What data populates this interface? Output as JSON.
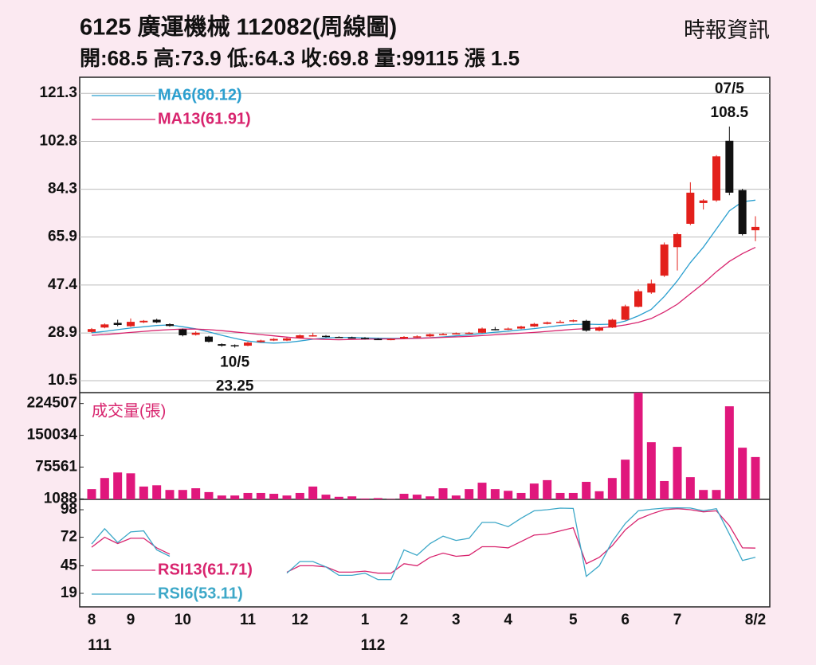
{
  "chart_data": [
    {
      "type": "candlestick",
      "title": "6125  廣運機械 112082(周線圖)",
      "subtitle": "開:68.5 高:73.9 低:64.3 收:69.8 量:99115 漲 1.5",
      "source": "時報資訊",
      "categories": [
        "8",
        null,
        null,
        "9",
        null,
        null,
        null,
        "10",
        null,
        null,
        null,
        null,
        "11",
        null,
        null,
        null,
        "12",
        null,
        null,
        null,
        null,
        "1",
        null,
        null,
        "2",
        null,
        null,
        null,
        "3",
        null,
        null,
        null,
        "4",
        null,
        null,
        null,
        null,
        "5",
        null,
        null,
        null,
        "6",
        null,
        null,
        null,
        "7",
        null,
        null,
        null,
        null,
        null,
        "8/2"
      ],
      "category_years": [
        "111",
        null,
        null,
        null,
        null,
        null,
        null,
        null,
        null,
        null,
        null,
        null,
        null,
        null,
        null,
        null,
        null,
        null,
        null,
        null,
        null,
        "112",
        null,
        null,
        null,
        null,
        null,
        null,
        null,
        null,
        null,
        null,
        null,
        null,
        null,
        null,
        null,
        null,
        null,
        null,
        null,
        null,
        null,
        null,
        null,
        null,
        null,
        null,
        null,
        null,
        null,
        null
      ],
      "open": [
        29.3,
        31.0,
        32.8,
        31.5,
        33.0,
        34.0,
        32.3,
        30.3,
        28.2,
        27.5,
        24.6,
        24.2,
        24.0,
        25.4,
        26.0,
        26.0,
        27.0,
        27.8,
        27.8,
        27.4,
        27.2,
        27.0,
        26.6,
        26.4,
        26.8,
        27.2,
        27.6,
        28.3,
        28.5,
        28.8,
        29.0,
        30.4,
        30.2,
        30.6,
        31.4,
        32.4,
        33.0,
        33.4,
        33.6,
        29.8,
        31.0,
        34.0,
        39.0,
        44.5,
        51.0,
        62.0,
        71.0,
        79.0,
        80.0,
        103.0,
        84.0,
        68.5
      ],
      "high": [
        30.8,
        32.6,
        34.0,
        34.5,
        33.9,
        34.4,
        32.6,
        30.6,
        29.5,
        27.8,
        24.9,
        24.5,
        25.5,
        26.3,
        26.9,
        27.1,
        28.3,
        29.0,
        28.1,
        27.6,
        27.5,
        27.3,
        26.9,
        26.9,
        27.7,
        28.0,
        28.7,
        28.9,
        29.1,
        29.3,
        31.0,
        31.2,
        31.0,
        31.7,
        32.8,
        33.3,
        33.8,
        34.1,
        34.0,
        31.4,
        34.4,
        39.8,
        45.8,
        49.5,
        63.8,
        67.6,
        87.0,
        80.5,
        97.5,
        108.5,
        84.5,
        73.9
      ],
      "low": [
        29.0,
        30.7,
        31.5,
        31.2,
        32.7,
        32.7,
        31.3,
        27.6,
        27.9,
        25.2,
        23.6,
        23.25,
        23.8,
        25.2,
        25.8,
        25.8,
        26.8,
        27.5,
        27.2,
        27.0,
        26.8,
        26.4,
        26.2,
        26.1,
        26.6,
        27.0,
        27.4,
        28.0,
        28.3,
        28.6,
        28.8,
        29.9,
        30.0,
        30.4,
        31.2,
        32.2,
        32.8,
        33.1,
        29.4,
        29.5,
        30.8,
        33.8,
        38.8,
        44.0,
        50.5,
        53.0,
        70.5,
        76.5,
        79.5,
        82.0,
        66.5,
        64.3
      ],
      "close": [
        30.4,
        32.2,
        32.0,
        33.2,
        33.6,
        33.0,
        31.6,
        28.0,
        29.0,
        25.5,
        24.0,
        23.8,
        25.2,
        26.0,
        26.6,
        26.8,
        28.0,
        28.0,
        27.5,
        27.2,
        27.0,
        26.8,
        26.4,
        26.6,
        27.4,
        27.6,
        28.4,
        28.5,
        28.8,
        29.0,
        30.6,
        30.2,
        30.6,
        31.4,
        32.4,
        33.0,
        33.2,
        33.8,
        29.8,
        31.0,
        34.0,
        39.2,
        45.0,
        48.0,
        63.0,
        67.0,
        83.0,
        80.0,
        97.0,
        83.0,
        67.0,
        69.8
      ],
      "up_color": "#e3201b",
      "down_color": "#111111",
      "series": [
        {
          "name": "MA6(80.12)",
          "color": "#2b9fcf",
          "values": [
            29,
            29.5,
            30.2,
            30.8,
            31.3,
            31.8,
            32,
            31.3,
            30.5,
            29.3,
            28,
            26.8,
            25.8,
            25.2,
            25,
            25.2,
            25.8,
            26.5,
            27,
            27.2,
            27.2,
            27,
            26.9,
            26.8,
            26.8,
            26.9,
            27.1,
            27.4,
            27.8,
            28.2,
            28.7,
            29.2,
            29.6,
            30.1,
            30.6,
            31.2,
            31.8,
            32.2,
            32.3,
            32.2,
            32.3,
            33.5,
            35.5,
            38,
            43,
            49,
            56,
            62,
            69,
            76,
            79.5,
            80.12
          ]
        },
        {
          "name": "MA13(61.91)",
          "color": "#d8246e",
          "values": [
            28,
            28.3,
            28.7,
            29.1,
            29.5,
            29.9,
            30.2,
            30.4,
            30.4,
            30.2,
            29.8,
            29.3,
            28.8,
            28.3,
            27.8,
            27.3,
            26.9,
            26.6,
            26.4,
            26.3,
            26.4,
            26.5,
            26.6,
            26.6,
            26.7,
            26.8,
            27,
            27.2,
            27.4,
            27.6,
            27.9,
            28.2,
            28.5,
            28.8,
            29.1,
            29.5,
            29.9,
            30.3,
            30.6,
            30.9,
            31.3,
            32,
            33,
            34.5,
            37,
            40,
            44,
            48,
            52.5,
            56.5,
            59.5,
            61.91
          ]
        }
      ],
      "annotations": [
        {
          "text": "07/5",
          "value": 108.5
        },
        {
          "text": "10/5",
          "value": 23.25
        }
      ],
      "ylim": [
        5.9,
        127.5
      ],
      "yticks": [
        10.5,
        28.9,
        47.4,
        65.9,
        84.3,
        102.8,
        121.3
      ],
      "grid": true
    },
    {
      "type": "bar",
      "title": "成交量(張)",
      "color": "#e0177c",
      "values": [
        24000,
        50000,
        63000,
        61000,
        30000,
        33000,
        22000,
        22000,
        26000,
        17000,
        9000,
        9000,
        15000,
        15000,
        13000,
        9000,
        15000,
        30000,
        11000,
        6000,
        7000,
        2000,
        3000,
        1000,
        13000,
        11000,
        7000,
        26000,
        9000,
        24000,
        39000,
        24000,
        20000,
        15000,
        37000,
        45000,
        15000,
        15000,
        41000,
        19000,
        50000,
        93000,
        250000,
        134000,
        43000,
        123000,
        52000,
        22000,
        22000,
        218000,
        121000,
        99115
      ],
      "ylim": [
        0,
        250000
      ],
      "yticks": [
        1088,
        75561,
        150034,
        224507
      ]
    },
    {
      "type": "line",
      "series": [
        {
          "name": "RSI13(61.71)",
          "color": "#d8246e",
          "values": [
            62.6,
            72,
            66,
            71,
            71,
            62,
            56,
            null,
            null,
            null,
            null,
            null,
            null,
            null,
            null,
            39,
            45,
            45,
            44,
            39,
            39,
            40,
            38,
            38,
            47,
            45,
            53,
            57,
            54,
            55,
            63,
            63,
            62,
            68,
            74,
            75,
            78,
            81,
            47,
            53,
            64,
            79,
            89,
            94,
            98,
            99,
            98,
            96,
            97,
            83,
            62,
            61.71
          ]
        },
        {
          "name": "RSI6(53.11)",
          "color": "#3da8c8",
          "values": [
            65.6,
            80,
            67,
            77,
            78,
            60,
            54,
            null,
            null,
            null,
            null,
            null,
            null,
            null,
            null,
            38,
            49,
            49,
            44,
            36,
            36,
            38,
            32,
            32,
            60,
            55,
            66,
            73,
            69,
            71,
            86,
            86,
            82,
            90,
            97,
            98,
            99.5,
            99.2,
            35,
            45,
            68,
            85,
            97,
            98.5,
            99.5,
            99.8,
            99.6,
            97,
            99,
            75,
            50,
            53.11
          ]
        }
      ],
      "ylim": [
        6.2,
        107.8
      ],
      "yticks": [
        19,
        45,
        72,
        98
      ]
    }
  ]
}
